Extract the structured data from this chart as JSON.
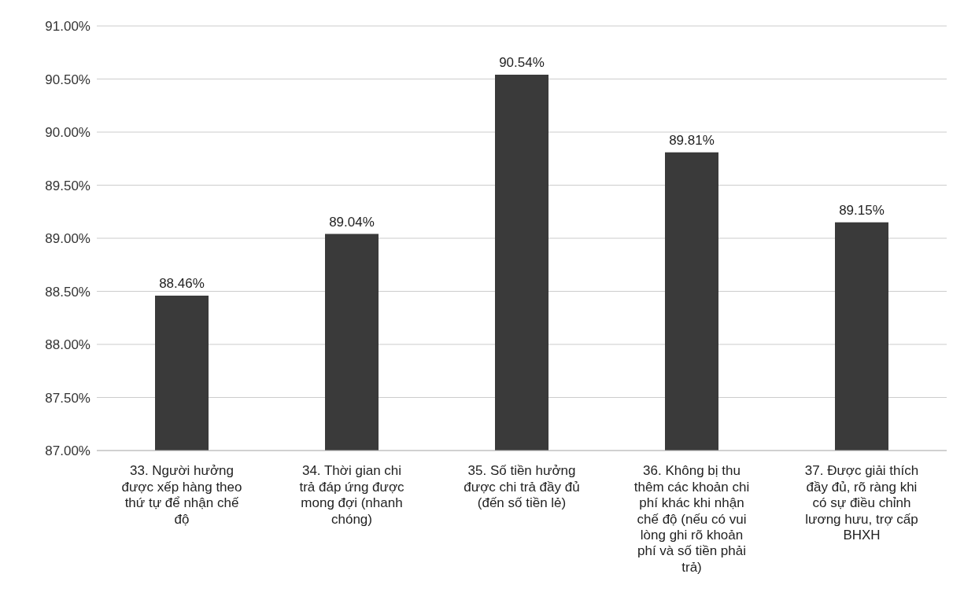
{
  "chart_data": {
    "type": "bar",
    "categories": [
      "33. Người hưởng được xếp hàng theo thứ tự để nhận chế độ",
      "34. Thời gian chi trả đáp ứng được mong đợi (nhanh chóng)",
      "35. Số tiền hưởng được chi trả đầy đủ (đến số tiền lẻ)",
      "36. Không bị thu thêm các khoản chi phí khác khi nhận chế độ (nếu có vui lòng ghi rõ khoản phí và số tiền phải trả)",
      "37. Được giải thích đầy đủ, rõ ràng khi có sự điều chỉnh lương hưu, trợ cấp BHXH"
    ],
    "values": [
      88.46,
      89.04,
      90.54,
      89.81,
      89.15
    ],
    "value_labels": [
      "88.46%",
      "89.04%",
      "90.54%",
      "89.81%",
      "89.15%"
    ],
    "color": "#3a3a3a",
    "ylim": [
      87,
      91
    ],
    "yticks": [
      {
        "value": 87,
        "label": "87.00%"
      },
      {
        "value": 87.5,
        "label": "87.50%"
      },
      {
        "value": 88,
        "label": "88.00%"
      },
      {
        "value": 88.5,
        "label": "88.50%"
      },
      {
        "value": 89,
        "label": "89.00%"
      },
      {
        "value": 89.5,
        "label": "89.50%"
      },
      {
        "value": 90,
        "label": "90.00%"
      },
      {
        "value": 90.5,
        "label": "90.50%"
      },
      {
        "value": 91,
        "label": "91.00%"
      }
    ],
    "grid": "y"
  }
}
